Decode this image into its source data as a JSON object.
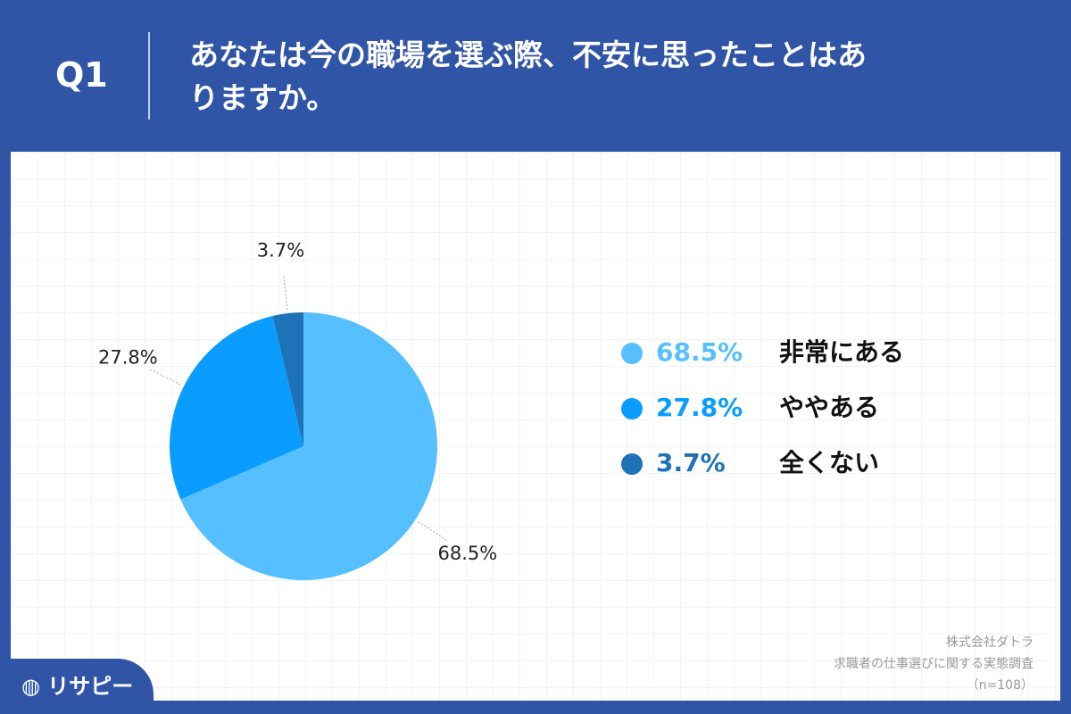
{
  "question_label": "Q1",
  "chart_data": {
    "type": "pie",
    "title": "あなたは今の職場を選ぶ際、不安に思ったことはありますか。",
    "categories": [
      "非常にある",
      "ややある",
      "全くない"
    ],
    "values": [
      68.5,
      27.8,
      3.7
    ],
    "value_labels": [
      "68.5%",
      "27.8%",
      "3.7%"
    ],
    "colors": [
      "#55bfff",
      "#0a9cff",
      "#1e72b8"
    ]
  },
  "source": [
    "株式会社ダトラ",
    "求職者の仕事選びに関する実態調査",
    "（n=108）"
  ],
  "brand": "リサピー"
}
